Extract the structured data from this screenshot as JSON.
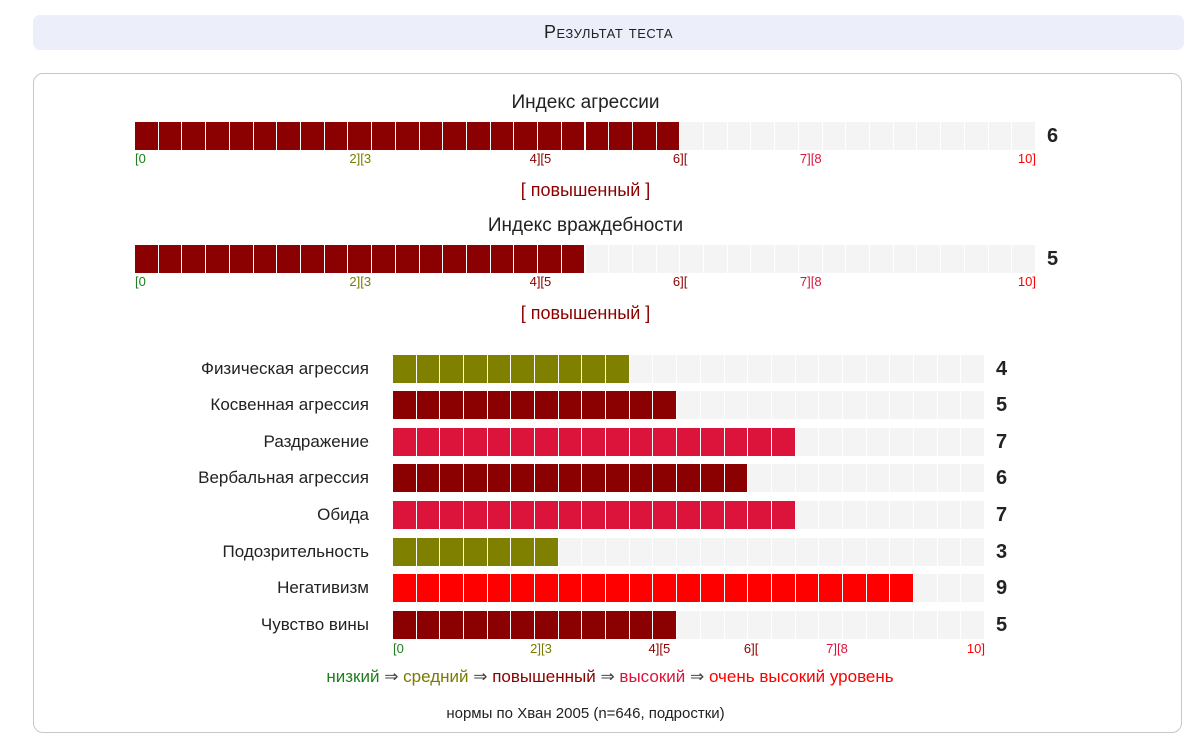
{
  "title": "Результат теста",
  "scale": {
    "max": 10,
    "ticks": [
      {
        "label": "[0",
        "value": 0,
        "level": "low",
        "align": "left"
      },
      {
        "label": "2][3",
        "value": 2.5,
        "level": "average",
        "align": "center"
      },
      {
        "label": "4][5",
        "value": 4.5,
        "level": "elevated",
        "align": "center"
      },
      {
        "label": "6][",
        "value": 6.05,
        "level": "elevated",
        "align": "center"
      },
      {
        "label": "7][8",
        "value": 7.5,
        "level": "high",
        "align": "center"
      },
      {
        "label": "10]",
        "value": 10,
        "level": "very_high",
        "align": "right"
      }
    ]
  },
  "colors": {
    "low": "#1e7d1e",
    "average": "#7a7a00",
    "elevated": "#8b0000",
    "high": "#dc143c",
    "very_high": "#ff0000",
    "empty": "#f4f4f4",
    "olive_bar": "#808000"
  },
  "indices": [
    {
      "name": "Индекс агрессии",
      "value": 6,
      "level": "elevated",
      "verdict": "[ повышенный ]"
    },
    {
      "name": "Индекс враждебности",
      "value": 5,
      "level": "elevated",
      "verdict": "[ повышенный ]"
    }
  ],
  "chart_data": {
    "type": "bar",
    "title": "Результат теста",
    "categories": [
      "Физическая агрессия",
      "Косвенная агрессия",
      "Раздражение",
      "Вербальная агрессия",
      "Обида",
      "Подозрительность",
      "Негативизм",
      "Чувство вины"
    ],
    "values": [
      4,
      5,
      7,
      6,
      7,
      3,
      9,
      5
    ],
    "levels": [
      "average",
      "elevated",
      "high",
      "elevated",
      "high",
      "average",
      "very_high",
      "elevated"
    ],
    "ylim": [
      0,
      10
    ],
    "xlabel": "",
    "ylabel": ""
  },
  "legend": {
    "items": [
      {
        "label": "низкий",
        "level": "low"
      },
      {
        "label": "средний",
        "level": "average"
      },
      {
        "label": "повышенный",
        "level": "elevated"
      },
      {
        "label": "высокий",
        "level": "high"
      },
      {
        "label": "очень высокий уровень",
        "level": "very_high"
      }
    ],
    "arrow": "⇒"
  },
  "norms": "нормы по Хван 2005 (n=646, подростки)"
}
